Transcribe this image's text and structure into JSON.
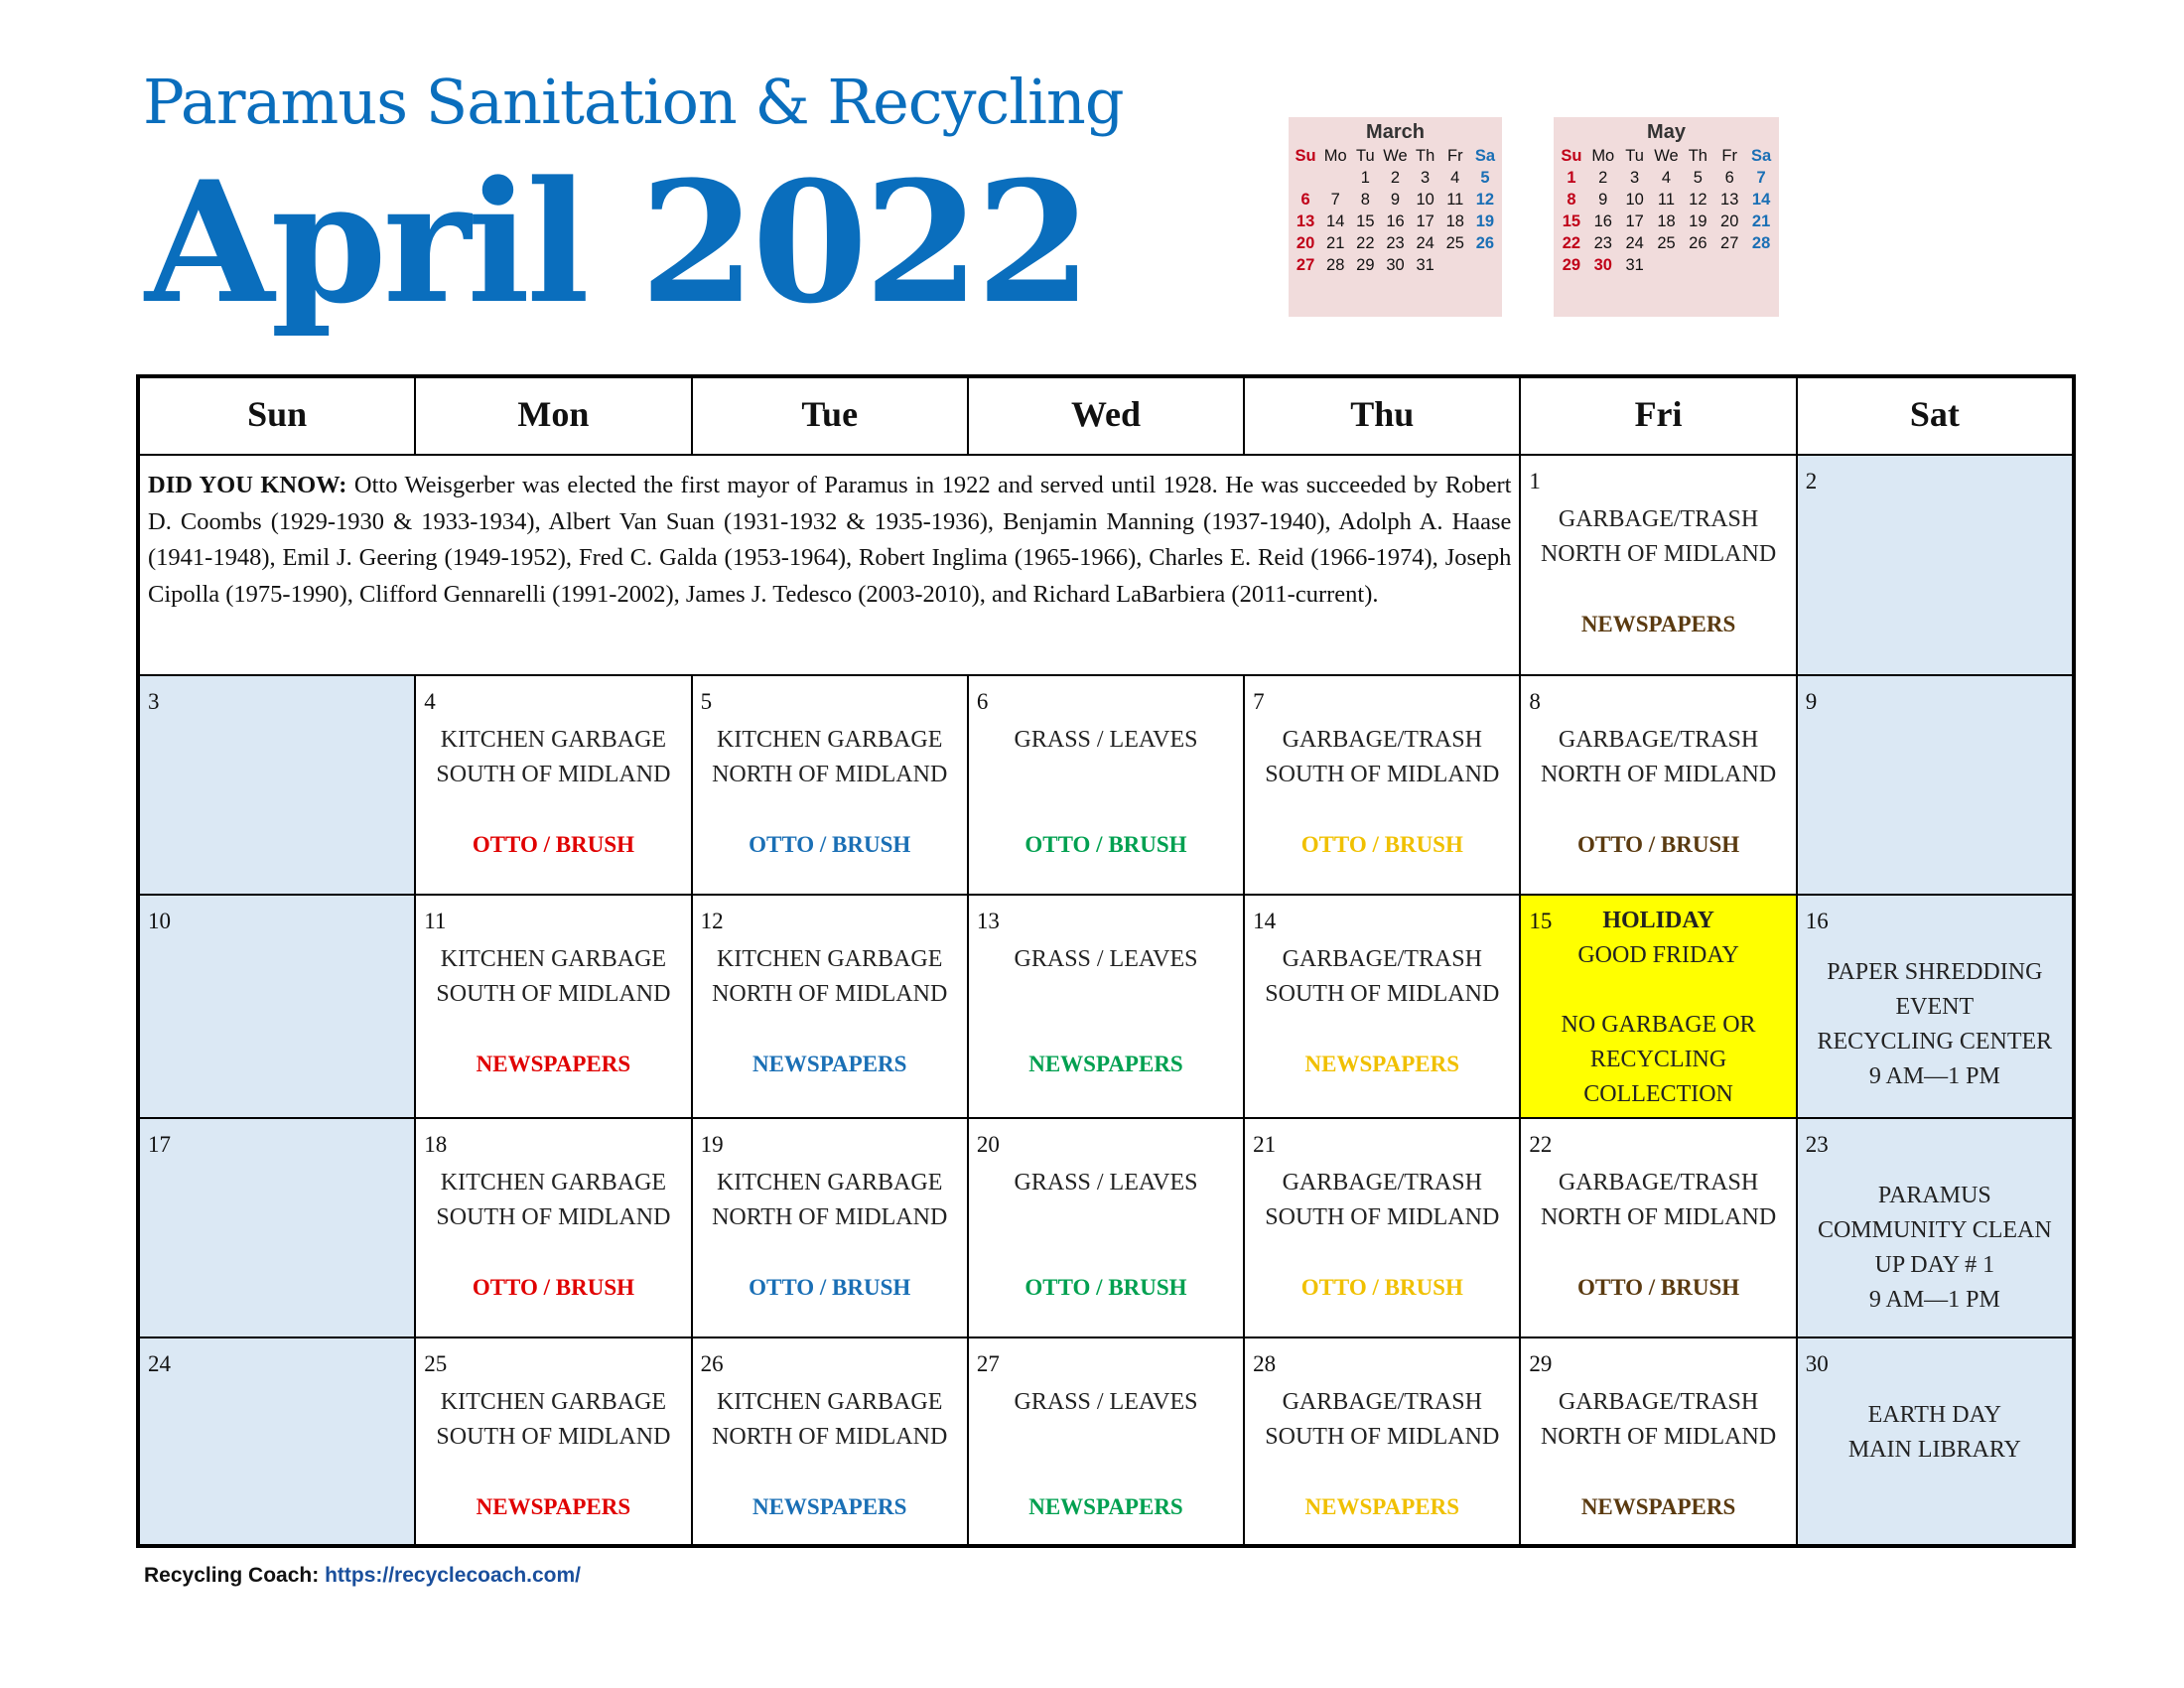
{
  "header": {
    "org": "Paramus Sanitation & Recycling",
    "month": "April 2022"
  },
  "colors": {
    "title": "#0a6ebd",
    "weekend_bg": "#dbe8f4",
    "holiday_bg": "#ffff00",
    "mon": "#e00000",
    "tue": "#1a6fb5",
    "wed": "#00a050",
    "thu": "#f0c000",
    "fri": "#5a3a10"
  },
  "mini_calendars": [
    {
      "title": "March",
      "dow": [
        "Su",
        "Mo",
        "Tu",
        "We",
        "Th",
        "Fr",
        "Sa"
      ],
      "lead": 2,
      "days": 31
    },
    {
      "title": "May",
      "dow": [
        "Su",
        "Mo",
        "Tu",
        "We",
        "Th",
        "Fr",
        "Sa"
      ],
      "lead": 0,
      "days": 31,
      "red_extra": [
        30
      ]
    }
  ],
  "weekdays": [
    "Sun",
    "Mon",
    "Tue",
    "Wed",
    "Thu",
    "Fri",
    "Sat"
  ],
  "did_you_know": {
    "label": "DID YOU KNOW:",
    "text": "Otto Weisgerber was elected the first mayor of Paramus in 1922 and served until 1928. He was succeeded by Robert D. Coombs (1929-1930 & 1933-1934), Albert Van Suan (1931-1932 & 1935-1936), Benjamin Manning (1937-1940), Adolph A. Haase (1941-1948), Emil J. Geering (1949-1952), Fred C. Galda (1953-1964), Robert Inglima (1965-1966), Charles E. Reid (1966-1974), Joseph Cipolla (1975-1990), Clifford Gennarelli (1991-2002), James J. Tedesco (2003-2010), and Richard LaBarbiera (2011-current)."
  },
  "weeks": [
    [
      {
        "day": "1",
        "lines": [
          "GARBAGE/TRASH",
          "NORTH OF MIDLAND",
          ""
        ],
        "accent": "NEWSPAPERS",
        "color": "#5a3a10"
      },
      {
        "day": "2",
        "weekend": true,
        "lines": []
      }
    ],
    [
      {
        "day": "3",
        "weekend": true,
        "lines": []
      },
      {
        "day": "4",
        "lines": [
          "KITCHEN GARBAGE",
          "SOUTH OF MIDLAND",
          ""
        ],
        "accent": "OTTO / BRUSH",
        "color": "#e00000"
      },
      {
        "day": "5",
        "lines": [
          "KITCHEN GARBAGE",
          "NORTH OF MIDLAND",
          ""
        ],
        "accent": "OTTO / BRUSH",
        "color": "#1a6fb5"
      },
      {
        "day": "6",
        "lines": [
          "GRASS / LEAVES",
          "",
          ""
        ],
        "accent": "OTTO / BRUSH",
        "color": "#00a050"
      },
      {
        "day": "7",
        "lines": [
          "GARBAGE/TRASH",
          "SOUTH OF MIDLAND",
          ""
        ],
        "accent": "OTTO / BRUSH",
        "color": "#f0c000"
      },
      {
        "day": "8",
        "lines": [
          "GARBAGE/TRASH",
          "NORTH OF MIDLAND",
          ""
        ],
        "accent": "OTTO / BRUSH",
        "color": "#5a3a10"
      },
      {
        "day": "9",
        "weekend": true,
        "lines": []
      }
    ],
    [
      {
        "day": "10",
        "weekend": true,
        "lines": []
      },
      {
        "day": "11",
        "lines": [
          "KITCHEN GARBAGE",
          "SOUTH OF MIDLAND",
          ""
        ],
        "accent": "NEWSPAPERS",
        "color": "#e00000"
      },
      {
        "day": "12",
        "lines": [
          "KITCHEN GARBAGE",
          "NORTH OF MIDLAND",
          ""
        ],
        "accent": "NEWSPAPERS",
        "color": "#1a6fb5"
      },
      {
        "day": "13",
        "lines": [
          "GRASS / LEAVES",
          "",
          ""
        ],
        "accent": "NEWSPAPERS",
        "color": "#00a050"
      },
      {
        "day": "14",
        "lines": [
          "GARBAGE/TRASH",
          "SOUTH OF MIDLAND",
          ""
        ],
        "accent": "NEWSPAPERS",
        "color": "#f0c000"
      },
      {
        "day": "15",
        "holiday": true,
        "title": "HOLIDAY",
        "lines": [
          "GOOD FRIDAY",
          "",
          "NO GARBAGE OR",
          "RECYCLING",
          "COLLECTION"
        ]
      },
      {
        "day": "16",
        "weekend": true,
        "event": true,
        "lines": [
          "PAPER SHREDDING",
          "EVENT",
          "RECYCLING CENTER",
          "9 AM—1 PM"
        ]
      }
    ],
    [
      {
        "day": "17",
        "weekend": true,
        "lines": []
      },
      {
        "day": "18",
        "lines": [
          "KITCHEN GARBAGE",
          "SOUTH OF MIDLAND",
          ""
        ],
        "accent": "OTTO / BRUSH",
        "color": "#e00000"
      },
      {
        "day": "19",
        "lines": [
          "KITCHEN GARBAGE",
          "NORTH OF MIDLAND",
          ""
        ],
        "accent": "OTTO / BRUSH",
        "color": "#1a6fb5"
      },
      {
        "day": "20",
        "lines": [
          "GRASS / LEAVES",
          "",
          ""
        ],
        "accent": "OTTO / BRUSH",
        "color": "#00a050"
      },
      {
        "day": "21",
        "lines": [
          "GARBAGE/TRASH",
          "SOUTH OF MIDLAND",
          ""
        ],
        "accent": "OTTO / BRUSH",
        "color": "#f0c000"
      },
      {
        "day": "22",
        "lines": [
          "GARBAGE/TRASH",
          "NORTH OF MIDLAND",
          ""
        ],
        "accent": "OTTO / BRUSH",
        "color": "#5a3a10"
      },
      {
        "day": "23",
        "weekend": true,
        "event": true,
        "lines": [
          "PARAMUS",
          "COMMUNITY CLEAN",
          "UP DAY # 1",
          "9 AM—1 PM"
        ]
      }
    ],
    [
      {
        "day": "24",
        "weekend": true,
        "lines": []
      },
      {
        "day": "25",
        "lines": [
          "KITCHEN GARBAGE",
          "SOUTH OF MIDLAND",
          ""
        ],
        "accent": "NEWSPAPERS",
        "color": "#e00000"
      },
      {
        "day": "26",
        "lines": [
          "KITCHEN GARBAGE",
          "NORTH OF MIDLAND",
          ""
        ],
        "accent": "NEWSPAPERS",
        "color": "#1a6fb5"
      },
      {
        "day": "27",
        "lines": [
          "GRASS / LEAVES",
          "",
          ""
        ],
        "accent": "NEWSPAPERS",
        "color": "#00a050"
      },
      {
        "day": "28",
        "lines": [
          "GARBAGE/TRASH",
          "SOUTH OF MIDLAND",
          ""
        ],
        "accent": "NEWSPAPERS",
        "color": "#f0c000"
      },
      {
        "day": "29",
        "lines": [
          "GARBAGE/TRASH",
          "NORTH OF MIDLAND",
          ""
        ],
        "accent": "NEWSPAPERS",
        "color": "#5a3a10"
      },
      {
        "day": "30",
        "weekend": true,
        "event": true,
        "lines": [
          "EARTH DAY",
          "MAIN LIBRARY"
        ]
      }
    ]
  ],
  "footer": {
    "label": "Recycling Coach: ",
    "link": "https://recyclecoach.com/"
  }
}
